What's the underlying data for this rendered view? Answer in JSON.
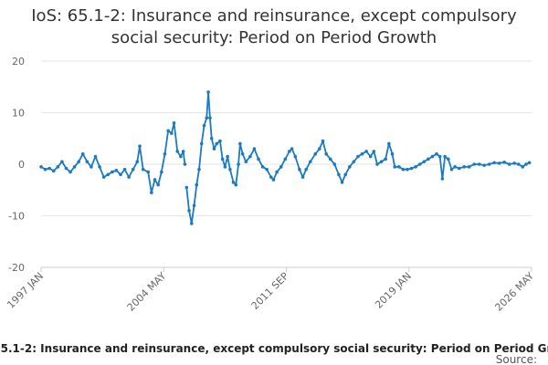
{
  "chart_data": {
    "type": "line",
    "title": "IoS: 65.1-2: Insurance and reinsurance, except compulsory social security: Period on Period Growth",
    "source_label": "Source:",
    "color": "#1a7bc0",
    "grid": true,
    "ylim": [
      -20,
      20
    ],
    "yticks": [
      -20,
      -10,
      0,
      10,
      20
    ],
    "xlim": [
      1997,
      2026.33
    ],
    "xticks": [
      {
        "value": 1997,
        "label": "1997 JAN"
      },
      {
        "value": 2004.33,
        "label": "2004 MAY"
      },
      {
        "value": 2011.67,
        "label": "2011 SEP"
      },
      {
        "value": 2019,
        "label": "2019 JAN"
      },
      {
        "value": 2026.33,
        "label": "2026 MAY"
      }
    ],
    "x": [
      1997.0,
      1997.25,
      1997.5,
      1997.75,
      1998.0,
      1998.25,
      1998.5,
      1998.75,
      1999.0,
      1999.25,
      1999.5,
      1999.75,
      2000.0,
      2000.25,
      2000.5,
      2000.75,
      2001.0,
      2001.25,
      2001.5,
      2001.75,
      2002.0,
      2002.25,
      2002.5,
      2002.75,
      2002.9,
      2003.1,
      2003.4,
      2003.6,
      2003.8,
      2004.0,
      2004.2,
      2004.4,
      2004.6,
      2004.8,
      2004.95,
      2005.15,
      2005.35,
      2005.5,
      2005.6,
      2005.65,
      2005.7,
      2005.85,
      2006.0,
      2006.15,
      2006.3,
      2006.45,
      2006.6,
      2006.75,
      2006.9,
      2007.0,
      2007.1,
      2007.2,
      2007.35,
      2007.5,
      2007.7,
      2007.85,
      2008.0,
      2008.15,
      2008.3,
      2008.5,
      2008.65,
      2008.8,
      2008.9,
      2009.05,
      2009.25,
      2009.5,
      2009.75,
      2010.0,
      2010.25,
      2010.5,
      2010.75,
      2010.9,
      2011.1,
      2011.35,
      2011.6,
      2011.85,
      2012.0,
      2012.2,
      2012.45,
      2012.65,
      2012.85,
      2013.1,
      2013.4,
      2013.65,
      2013.85,
      2014.05,
      2014.3,
      2014.55,
      2014.8,
      2015.0,
      2015.2,
      2015.45,
      2015.7,
      2015.95,
      2016.2,
      2016.45,
      2016.7,
      2016.9,
      2017.1,
      2017.35,
      2017.6,
      2017.8,
      2018.0,
      2018.15,
      2018.4,
      2018.65,
      2018.9,
      2019.15,
      2019.4,
      2019.65,
      2019.9,
      2020.15,
      2020.4,
      2020.65,
      2020.85,
      2021.0,
      2021.15,
      2021.35,
      2021.55,
      2021.75,
      2022.0,
      2022.3,
      2022.6,
      2022.9,
      2023.2,
      2023.5,
      2023.8,
      2024.1,
      2024.4,
      2024.7,
      2025.0,
      2025.3,
      2025.55,
      2025.8,
      2026.0,
      2026.2
    ],
    "values": [
      -0.5,
      -1,
      -0.8,
      -1.3,
      -0.5,
      0.5,
      -0.8,
      -1.5,
      -0.5,
      0.5,
      2,
      0.5,
      -0.5,
      1.5,
      -0.5,
      -2.5,
      -2,
      -1.5,
      -1.2,
      -2,
      -1,
      -2.5,
      -1,
      0.5,
      3.5,
      -1,
      -1.5,
      -5.5,
      -3,
      -4,
      -1.5,
      2,
      6.5,
      6,
      8,
      2.5,
      1.5,
      2.5,
      0,
      null,
      -4.5,
      -9,
      -11.5,
      -8,
      -4,
      -1,
      4,
      7.5,
      9,
      14,
      9,
      5,
      3,
      4,
      4.5,
      1,
      -0.5,
      1.5,
      -1,
      -3.5,
      -4,
      0,
      4,
      2,
      0.5,
      1.5,
      3,
      1,
      -0.5,
      -1,
      -2.5,
      -3,
      -1.5,
      -0.5,
      1,
      2.5,
      3,
      1.5,
      -1,
      -2.5,
      -1,
      0.5,
      2,
      3,
      4.5,
      2,
      1,
      0,
      -2,
      -3.5,
      -2,
      -0.5,
      0.5,
      1.5,
      2,
      2.5,
      1.5,
      2.5,
      0,
      0.5,
      1,
      4,
      2,
      -0.5,
      -0.5,
      -1,
      -1,
      -0.8,
      -0.5,
      0,
      0.5,
      1,
      1.5,
      2,
      1.5,
      -2.8,
      1.5,
      1,
      -1,
      -0.5,
      -0.8,
      -0.5,
      -0.5,
      0,
      0,
      -0.2,
      0,
      0.3,
      0.2,
      0.4,
      0,
      0.2,
      0,
      -0.5,
      0,
      0.3
    ]
  }
}
